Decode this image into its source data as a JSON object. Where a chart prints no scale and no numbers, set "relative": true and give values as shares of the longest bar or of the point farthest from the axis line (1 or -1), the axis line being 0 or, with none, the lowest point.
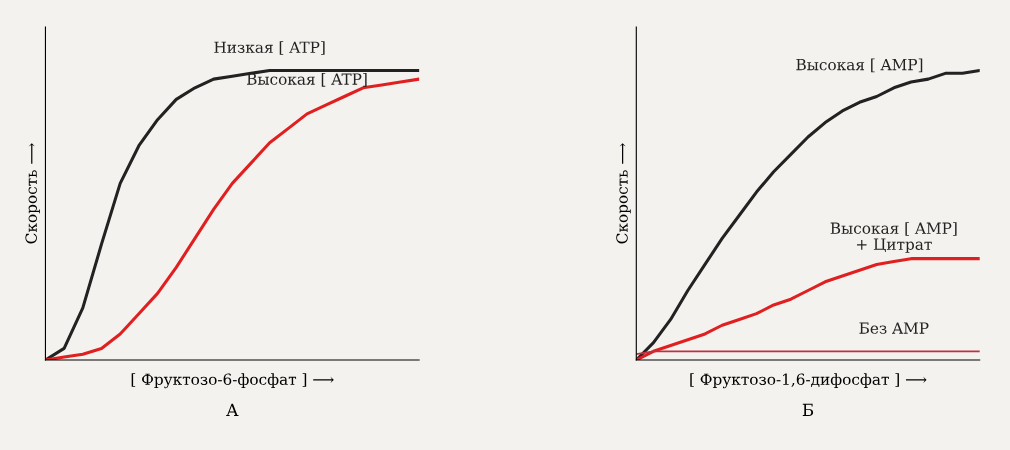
{
  "chart_data": [
    {
      "type": "line",
      "relative": true,
      "xlabel": "[ Фруктозо-6-фосфат ] ⟶",
      "ylabel": "Скорость ⟶",
      "annotations": [
        "А"
      ],
      "grid": false,
      "legend": false,
      "categories": [
        null,
        null,
        null,
        null,
        null,
        null,
        null,
        null,
        null,
        null,
        null,
        null,
        null,
        null,
        null,
        null,
        null,
        null,
        null,
        null,
        null
      ],
      "series": [
        {
          "name": "Низкая [ ATP]",
          "color": "#222222",
          "values": [
            0,
            0.04,
            0.18,
            0.4,
            0.61,
            0.74,
            0.83,
            0.9,
            0.94,
            0.97,
            0.98,
            0.99,
            1,
            1,
            1,
            1,
            1,
            1,
            1,
            1,
            1
          ]
        },
        {
          "name": "Высокая [ ATP]",
          "color": "#e02020",
          "values": [
            0,
            0.01,
            0.02,
            0.04,
            0.09,
            0.16,
            0.23,
            0.32,
            0.42,
            0.52,
            0.61,
            0.68,
            0.75,
            0.8,
            0.85,
            0.88,
            0.91,
            0.94,
            0.95,
            0.96,
            0.97
          ]
        }
      ]
    },
    {
      "type": "line",
      "relative": true,
      "xlabel": "[ Фруктозо-1,6-дифосфат ] ⟶",
      "ylabel": "Скорость ⟶",
      "annotations": [
        "Б"
      ],
      "grid": false,
      "legend": false,
      "categories": [
        null,
        null,
        null,
        null,
        null,
        null,
        null,
        null,
        null,
        null,
        null,
        null,
        null,
        null,
        null,
        null,
        null,
        null,
        null,
        null,
        null
      ],
      "series": [
        {
          "name": "Высокая [ AMP]",
          "color": "#222222",
          "values": [
            0,
            0.06,
            0.14,
            0.24,
            0.33,
            0.42,
            0.5,
            0.58,
            0.65,
            0.71,
            0.77,
            0.82,
            0.86,
            0.89,
            0.91,
            0.94,
            0.96,
            0.97,
            0.99,
            0.99,
            1
          ]
        },
        {
          "name": "Высокая [ AMP]\n+ Цитрат",
          "color": "#e02020",
          "values": [
            0,
            0.03,
            0.05,
            0.07,
            0.09,
            0.12,
            0.14,
            0.16,
            0.19,
            0.21,
            0.24,
            0.27,
            0.29,
            0.31,
            0.33,
            0.34,
            0.35,
            0.35,
            0.35,
            0.35,
            0.35
          ]
        },
        {
          "name": "Без AMP",
          "color": "#c03040",
          "values": [
            0.02,
            0.03,
            0.03,
            0.03,
            0.03,
            0.03,
            0.03,
            0.03,
            0.03,
            0.03,
            0.03,
            0.03,
            0.03,
            0.03,
            0.03,
            0.03,
            0.03,
            0.03,
            0.03,
            0.03,
            0.03
          ]
        }
      ]
    }
  ]
}
